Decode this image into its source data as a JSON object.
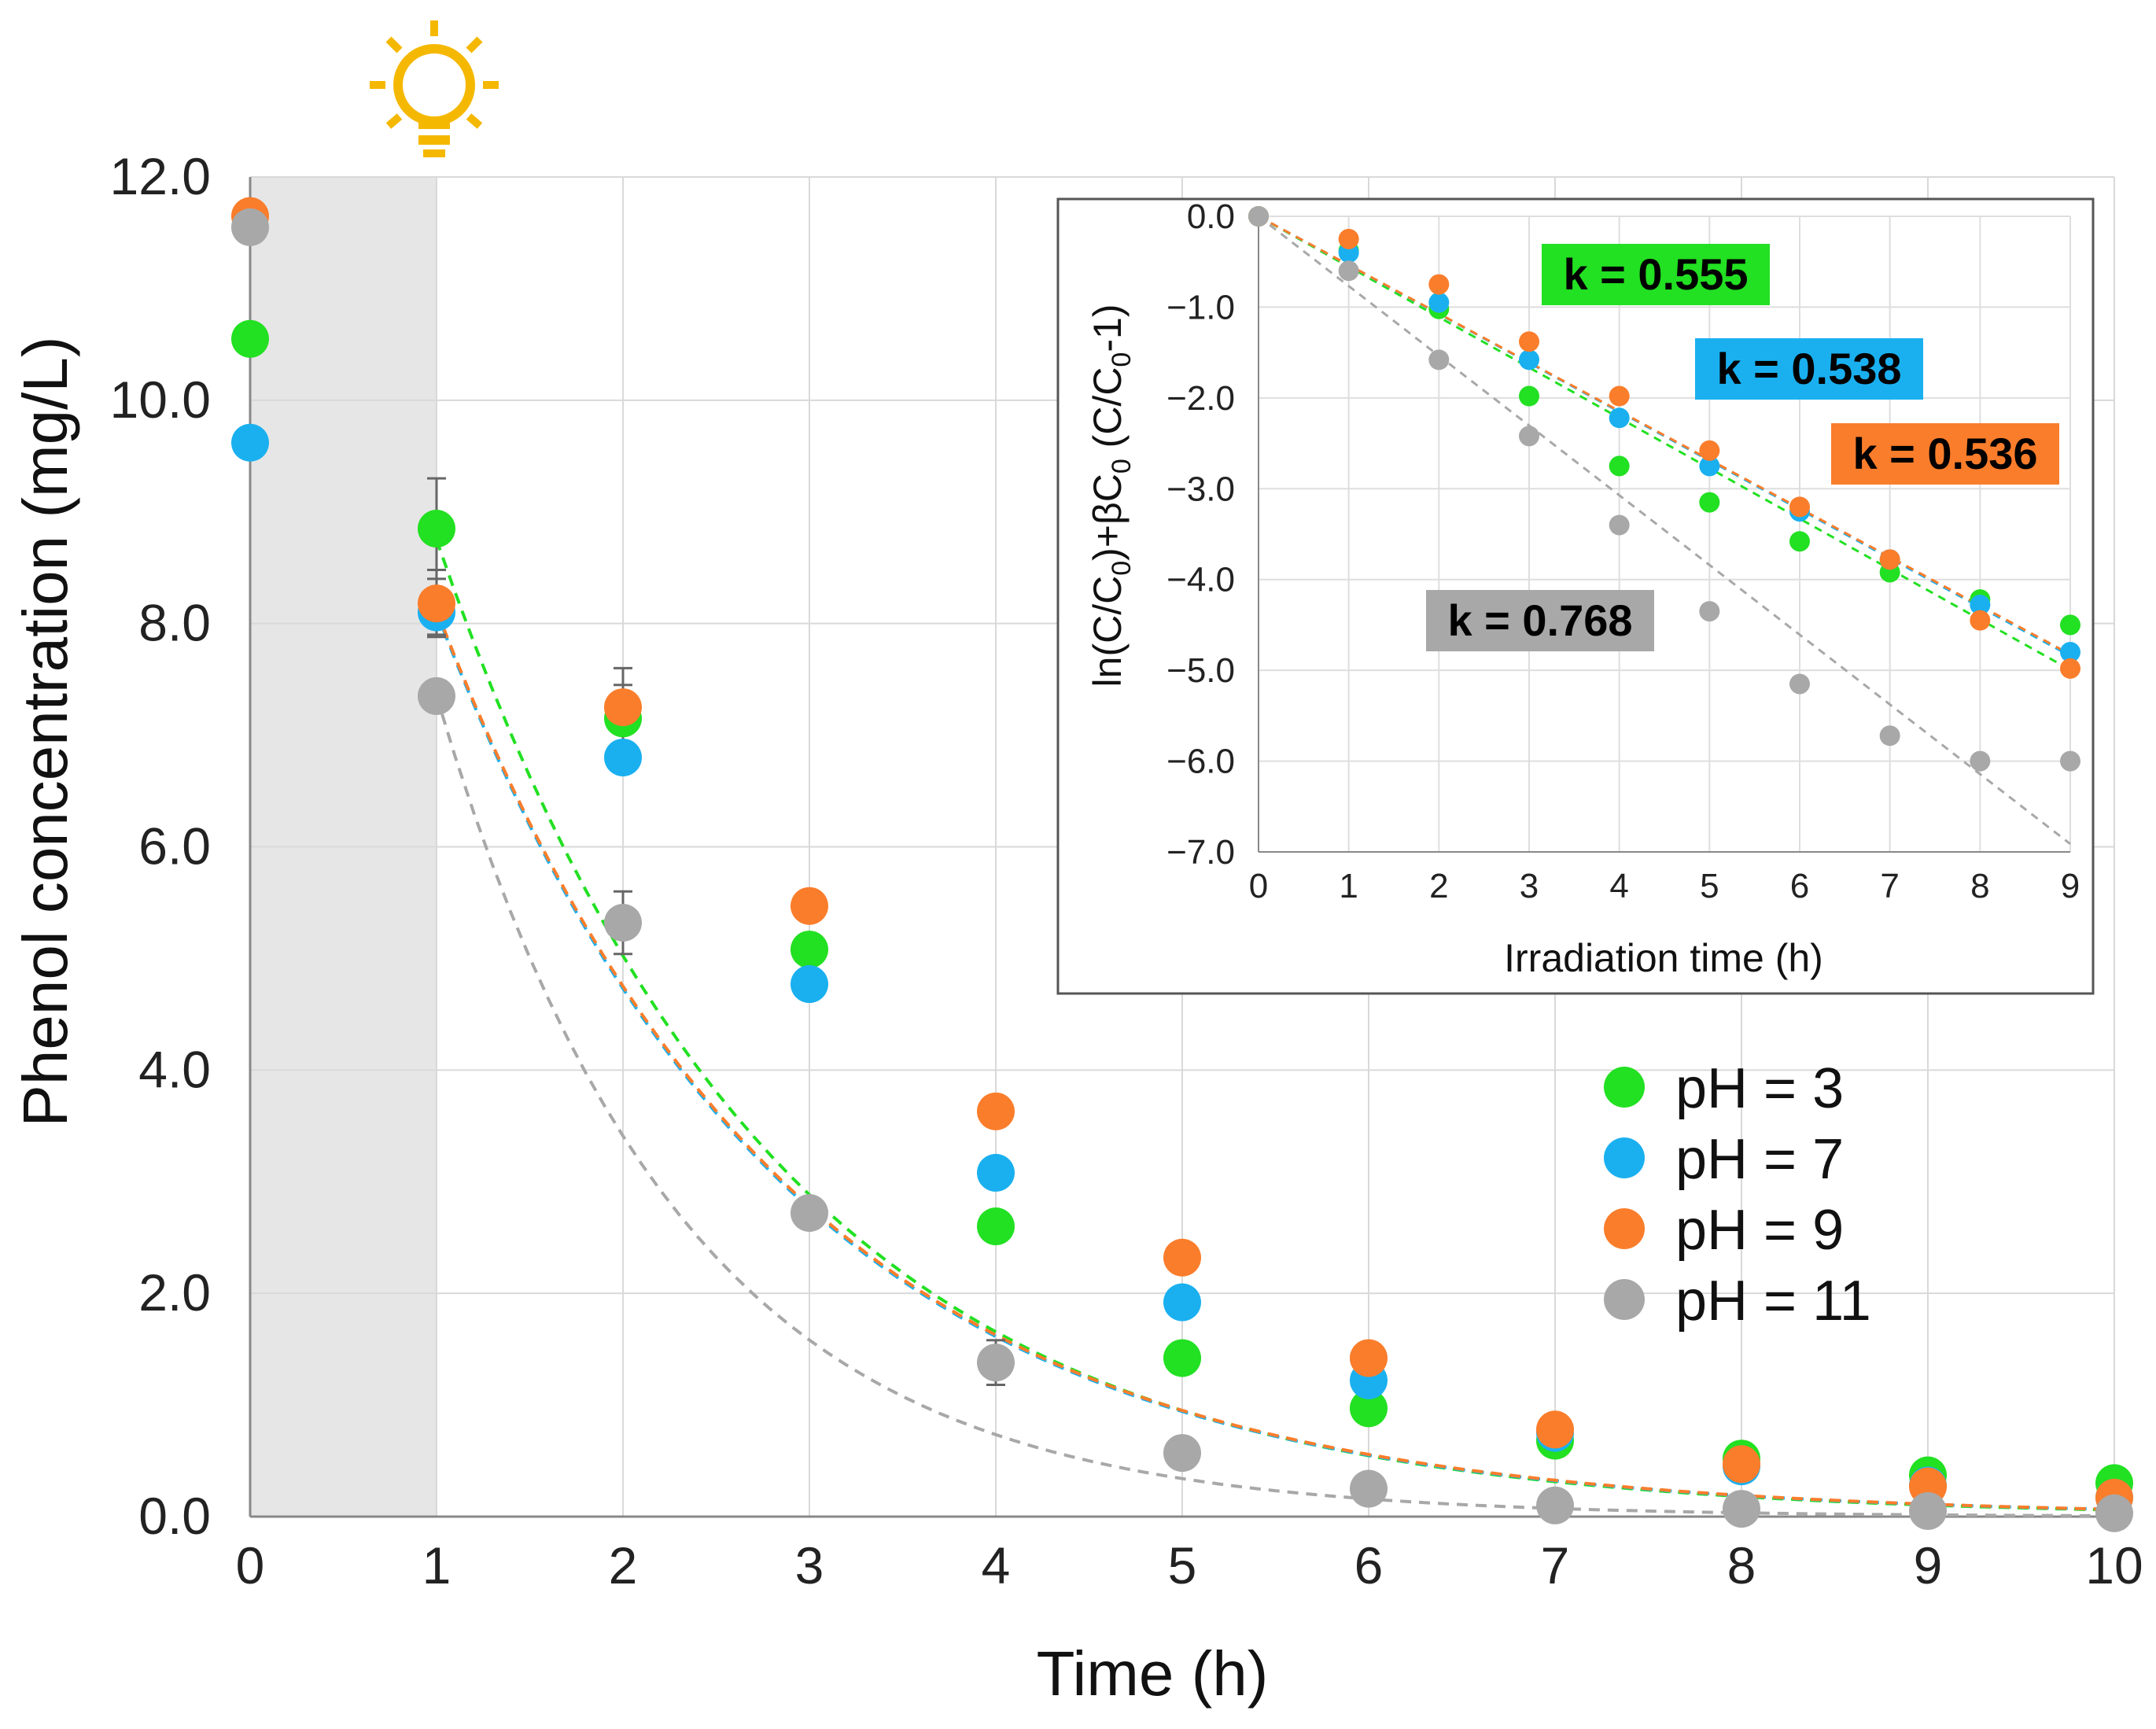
{
  "chart_data": [
    {
      "type": "scatter",
      "title": "",
      "xlabel": "Time (h)",
      "ylabel": "Phenol concentration (mg/L)",
      "xlim": [
        0,
        10
      ],
      "ylim": [
        0,
        12
      ],
      "x_ticks": [
        "0",
        "1",
        "2",
        "3",
        "4",
        "5",
        "6",
        "7",
        "8",
        "9",
        "10"
      ],
      "y_ticks": [
        "0.0",
        "2.0",
        "4.0",
        "6.0",
        "8.0",
        "10.0",
        "12.0"
      ],
      "grid": true,
      "dark_period": [
        0,
        1
      ],
      "light_icon": "light-bulb-icon",
      "legend": {
        "position": "bottom-right"
      },
      "series": [
        {
          "name": "pH = 3",
          "color": "#22e022",
          "x": [
            0,
            1,
            2,
            3,
            4,
            5,
            6,
            7,
            8,
            9,
            10
          ],
          "y": [
            10.55,
            8.85,
            7.15,
            5.08,
            2.6,
            1.42,
            0.97,
            0.68,
            0.52,
            0.37,
            0.3
          ],
          "err": [
            0,
            0.45,
            0.3,
            0,
            0,
            0,
            0,
            0,
            0,
            0,
            0
          ],
          "fit_k": 0.555,
          "fit_c0": 8.75
        },
        {
          "name": "pH = 7",
          "color": "#1ab0f0",
          "x": [
            0,
            1,
            2,
            3,
            4,
            5,
            6,
            7,
            8,
            9,
            10
          ],
          "y": [
            9.62,
            8.1,
            6.8,
            4.77,
            3.08,
            1.92,
            1.22,
            0.75,
            0.45,
            0.28,
            0.17
          ],
          "err": [
            0,
            0.2,
            0,
            0,
            0,
            0,
            0,
            0,
            0,
            0,
            0
          ],
          "fit_k": 0.538,
          "fit_c0": 8.1
        },
        {
          "name": "pH = 9",
          "color": "#fa7d2b",
          "x": [
            0,
            1,
            2,
            3,
            4,
            5,
            6,
            7,
            8,
            9,
            10
          ],
          "y": [
            11.65,
            8.18,
            7.25,
            5.47,
            3.63,
            2.32,
            1.42,
            0.78,
            0.47,
            0.27,
            0.17
          ],
          "err": [
            0,
            0.3,
            0.35,
            0,
            0,
            0,
            0,
            0,
            0,
            0,
            0
          ],
          "fit_k": 0.536,
          "fit_c0": 8.12
        },
        {
          "name": "pH = 11",
          "color": "#a8a8a8",
          "x": [
            0,
            1,
            2,
            3,
            4,
            5,
            6,
            7,
            8,
            9,
            10
          ],
          "y": [
            11.55,
            7.35,
            5.32,
            2.72,
            1.38,
            0.57,
            0.25,
            0.1,
            0.07,
            0.05,
            0.03
          ],
          "err": [
            0,
            0,
            0.28,
            0,
            0.2,
            0,
            0,
            0,
            0,
            0,
            0
          ],
          "fit_k": 0.768,
          "fit_c0": 7.35
        }
      ]
    },
    {
      "type": "scatter",
      "title": "",
      "xlabel": "Irradiation time (h)",
      "ylabel_parts": [
        "ln(C/C",
        "0",
        ")+βC",
        "0",
        " (C/C",
        "0",
        "-1)"
      ],
      "xlim": [
        0,
        9
      ],
      "ylim": [
        -7,
        0
      ],
      "x_ticks": [
        "0",
        "1",
        "2",
        "3",
        "4",
        "5",
        "6",
        "7",
        "8",
        "9"
      ],
      "y_ticks": [
        "0.0",
        "−1.0",
        "−2.0",
        "−3.0",
        "−4.0",
        "−5.0",
        "−6.0",
        "−7.0"
      ],
      "grid": true,
      "series": [
        {
          "name": "pH = 3",
          "color": "#22e022",
          "k": 0.555,
          "x": [
            0,
            1,
            2,
            3,
            4,
            5,
            6,
            7,
            8,
            9
          ],
          "y": [
            0,
            -0.38,
            -1.02,
            -1.98,
            -2.75,
            -3.15,
            -3.58,
            -3.92,
            -4.22,
            -4.5
          ]
        },
        {
          "name": "pH = 7",
          "color": "#1ab0f0",
          "k": 0.538,
          "x": [
            0,
            1,
            2,
            3,
            4,
            5,
            6,
            7,
            8,
            9
          ],
          "y": [
            0,
            -0.4,
            -0.95,
            -1.58,
            -2.22,
            -2.75,
            -3.25,
            -3.78,
            -4.28,
            -4.8
          ]
        },
        {
          "name": "pH = 9",
          "color": "#fa7d2b",
          "k": 0.536,
          "x": [
            0,
            1,
            2,
            3,
            4,
            5,
            6,
            7,
            8,
            9
          ],
          "y": [
            0,
            -0.25,
            -0.75,
            -1.38,
            -1.98,
            -2.58,
            -3.2,
            -3.78,
            -4.45,
            -4.98
          ]
        },
        {
          "name": "pH = 11",
          "color": "#a8a8a8",
          "k": 0.768,
          "x": [
            0,
            1,
            2,
            3,
            4,
            5,
            6,
            7,
            8,
            9
          ],
          "y": [
            0,
            -0.6,
            -1.58,
            -2.42,
            -3.4,
            -4.35,
            -5.15,
            -5.72,
            -6.0,
            -6.0
          ]
        }
      ],
      "annotations": [
        {
          "text": "k = 0.555",
          "color": "#22e022"
        },
        {
          "text": "k = 0.538",
          "color": "#1ab0f0"
        },
        {
          "text": "k = 0.536",
          "color": "#fa7d2b"
        },
        {
          "text": "k = 0.768",
          "color": "#a8a8a8"
        }
      ]
    }
  ]
}
